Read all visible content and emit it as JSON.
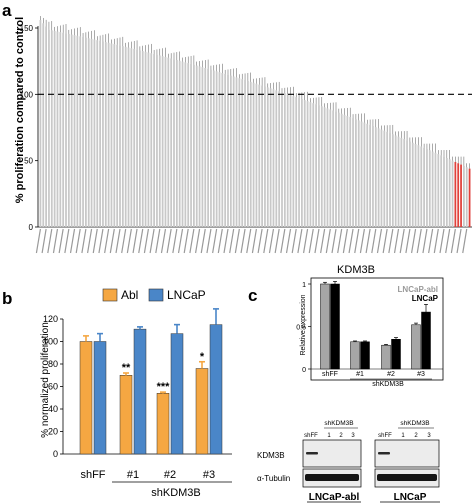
{
  "panels": {
    "a": "a",
    "b": "b",
    "c": "c"
  },
  "chart_data": [
    {
      "id": "a",
      "type": "bar",
      "ylabel": "% proliferation compared to control",
      "ylim": [
        0,
        150
      ],
      "yticks": [
        0,
        50,
        100,
        150
      ],
      "reference_line": 100,
      "bar_count": 152,
      "values_start": 150,
      "values_end": 44,
      "highlighted_bars_from_end": [
        1,
        4,
        5,
        6
      ],
      "colors": {
        "bar": "#c8c8c8",
        "highlight": "#e0403a",
        "error": "#555555"
      }
    },
    {
      "id": "b",
      "type": "bar",
      "ylabel": "% normalized proliferation",
      "xlabel": "shKDM3B",
      "categories": [
        "shFF",
        "#1",
        "#2",
        "#3"
      ],
      "ylim": [
        0,
        120
      ],
      "yticks": [
        0,
        20,
        40,
        60,
        80,
        100,
        120
      ],
      "series": [
        {
          "name": "Abl",
          "color": "#f5a742",
          "values": [
            100,
            70,
            54,
            76
          ],
          "errors": [
            5,
            2,
            1,
            6
          ],
          "sig": [
            "",
            "**",
            "***",
            "*"
          ]
        },
        {
          "name": "LNCaP",
          "color": "#4a86c8",
          "values": [
            100,
            111,
            107,
            115
          ],
          "errors": [
            7,
            2,
            8,
            14
          ],
          "sig": [
            "",
            "",
            "",
            ""
          ]
        }
      ]
    },
    {
      "id": "c",
      "type": "bar",
      "title": "KDM3B",
      "ylabel": "Relative expression",
      "xlabel": "shKDM3B",
      "categories": [
        "shFF",
        "#1",
        "#2",
        "#3"
      ],
      "ylim": [
        0,
        1.0
      ],
      "yticks": [
        0,
        0.5,
        1
      ],
      "series": [
        {
          "name": "LNCaP-abl",
          "color": "#a6a6a6",
          "values": [
            1.0,
            0.32,
            0.28,
            0.52
          ],
          "errors": [
            0.02,
            0.01,
            0.01,
            0.02
          ]
        },
        {
          "name": "LNCaP",
          "color": "#000000",
          "values": [
            1.0,
            0.32,
            0.35,
            0.67
          ],
          "errors": [
            0.03,
            0.01,
            0.02,
            0.09
          ]
        }
      ]
    }
  ],
  "blot": {
    "group_label": "shKDM3B",
    "lane_labels": [
      "shFF",
      "1",
      "2",
      "3"
    ],
    "row_labels": [
      "KDM3B",
      "α-Tubulin"
    ],
    "cell_lines": [
      "LNCaP-abl",
      "LNCaP"
    ]
  }
}
